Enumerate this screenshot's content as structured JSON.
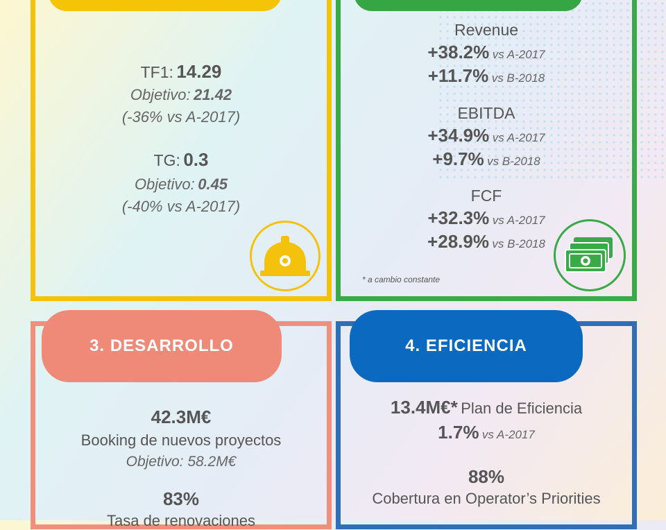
{
  "panel1": {
    "tf1_label": "TF1:",
    "tf1_value": "14.29",
    "tf1_target_label": "Objetivo:",
    "tf1_target_value": "21.42",
    "tf1_vs": "(-36% vs A-2017)",
    "tg_label": "TG:",
    "tg_value": "0.3",
    "tg_target_label": "Objetivo:",
    "tg_target_value": "0.45",
    "tg_vs": "(-40% vs A-2017)",
    "icon": "hard-hat-icon"
  },
  "panel2": {
    "revenue_label": "Revenue",
    "revenue_a": "+38.2%",
    "revenue_a_vs": "vs A-2017",
    "revenue_b": "+11.7%",
    "revenue_b_vs": "vs B-2018",
    "ebitda_label": "EBITDA",
    "ebitda_a": "+34.9%",
    "ebitda_a_vs": "vs A-2017",
    "ebitda_b": "+9.7%",
    "ebitda_b_vs": "vs B-2018",
    "fcf_label": "FCF",
    "fcf_a": "+32.3%",
    "fcf_a_vs": "vs A-2017",
    "fcf_b": "+28.9%",
    "fcf_b_vs": "vs B-2018",
    "footnote": "* a cambio constante",
    "icon": "money-icon"
  },
  "panel3": {
    "title": "3. DESARROLLO",
    "booking_value": "42.3M€",
    "booking_label": "Booking de nuevos proyectos",
    "booking_target": "Objetivo: 58.2M€",
    "renewal_value": "83%",
    "renewal_label": "Tasa de renovaciones"
  },
  "panel4": {
    "title": "4. EFICIENCIA",
    "plan_value": "13.4M€*",
    "plan_label": "Plan de Eficiencia",
    "plan_pct": "1.7%",
    "plan_pct_vs": "vs A-2017",
    "coverage_value": "88%",
    "coverage_label": "Cobertura en Operator’s Priorities"
  },
  "colors": {
    "yellow": "#f4c20d",
    "green": "#3aa947",
    "salmon": "#ef8f7c",
    "blue": "#0b69bf"
  }
}
